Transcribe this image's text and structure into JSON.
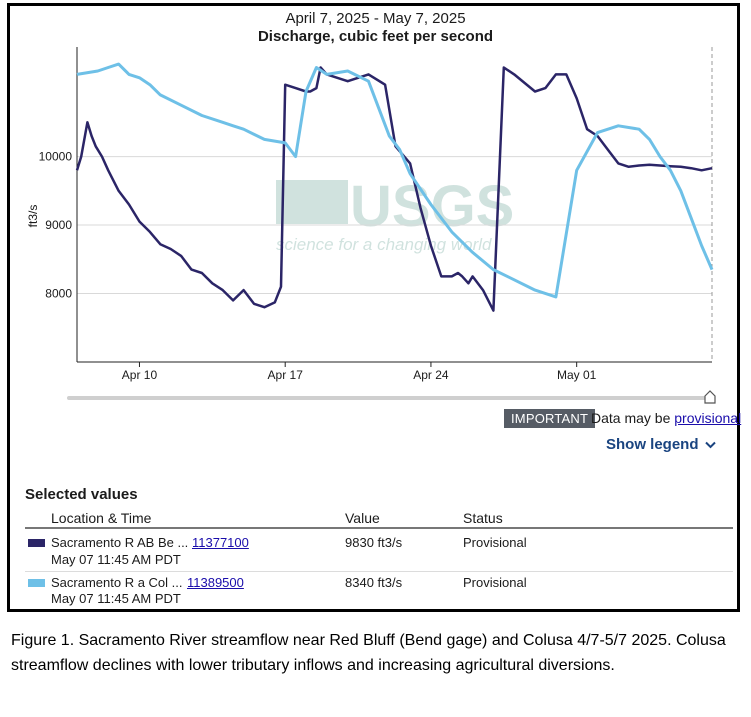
{
  "header": {
    "date_range": "April 7, 2025 - May 7, 2025",
    "title": "Discharge, cubic feet per second"
  },
  "chart_data": {
    "type": "line",
    "date_range": "April 7, 2025 - May 7, 2025",
    "title": "Discharge, cubic feet per second",
    "ylabel": "ft3/s",
    "xlabel": "",
    "ylim": [
      7000,
      11600
    ],
    "xlim": [
      0,
      30.5
    ],
    "y_ticks": [
      8000,
      9000,
      10000
    ],
    "y_tick_labels": [
      "8000",
      "9000",
      "10000"
    ],
    "x_ticks": [
      3,
      10,
      17,
      24
    ],
    "x_tick_labels": [
      "Apr 10",
      "Apr 17",
      "Apr 24",
      "May 01"
    ],
    "x_unit": "days after April 7, 2025 00:00",
    "grid": "horizontal",
    "watermark": {
      "logo": "USGS",
      "tagline": "science for a changing world"
    },
    "series": [
      {
        "name": "Sacramento R AB Be ...",
        "color": "#2b2567",
        "x": [
          0,
          0.2,
          0.5,
          0.7,
          0.9,
          1.2,
          1.5,
          2,
          2.5,
          3,
          3.5,
          4,
          4.5,
          5,
          5.5,
          6,
          6.5,
          7,
          7.5,
          8,
          8.5,
          9,
          9.5,
          9.8,
          10,
          10.5,
          11,
          11.2,
          11.5,
          11.7,
          12,
          13,
          14,
          14.8,
          15.3,
          16,
          16.5,
          17,
          17.5,
          18,
          18.3,
          18.5,
          18.8,
          19,
          19.5,
          20,
          20.5,
          21,
          22,
          22.5,
          23,
          23.5,
          24,
          24.5,
          25,
          25.5,
          26,
          26.5,
          27,
          27.5,
          28,
          28.5,
          29,
          29.5,
          30,
          30.5
        ],
        "y": [
          9800,
          10000,
          10500,
          10300,
          10150,
          10000,
          9800,
          9500,
          9300,
          9050,
          8900,
          8720,
          8650,
          8550,
          8350,
          8300,
          8150,
          8050,
          7900,
          8050,
          7850,
          7800,
          7870,
          8100,
          11050,
          11000,
          10950,
          10950,
          11000,
          11300,
          11200,
          11100,
          11200,
          11050,
          10150,
          9900,
          9250,
          8700,
          8250,
          8250,
          8300,
          8250,
          8150,
          8250,
          8050,
          7750,
          11300,
          11200,
          10950,
          11000,
          11200,
          11200,
          10850,
          10400,
          10300,
          10100,
          9900,
          9850,
          9870,
          9880,
          9870,
          9860,
          9850,
          9830,
          9800,
          9830
        ]
      },
      {
        "name": "Sacramento R a Col ...",
        "color": "#6ec0e7",
        "x": [
          0,
          1,
          1.5,
          2,
          2.5,
          3,
          3.5,
          4,
          5,
          6,
          7,
          7.5,
          8,
          9,
          10,
          10.5,
          11,
          11.5,
          12,
          13,
          14,
          15,
          15.5,
          16,
          17,
          18,
          19,
          20,
          21,
          22,
          23,
          24,
          25,
          26,
          27,
          27.5,
          28,
          28.5,
          29,
          29.5,
          30,
          30.5
        ],
        "y": [
          11200,
          11250,
          11300,
          11350,
          11200,
          11150,
          11050,
          10900,
          10750,
          10600,
          10500,
          10450,
          10400,
          10250,
          10200,
          10000,
          10950,
          11300,
          11200,
          11250,
          11100,
          10300,
          10100,
          9750,
          9300,
          8900,
          8600,
          8350,
          8200,
          8050,
          7950,
          9800,
          10350,
          10450,
          10400,
          10250,
          10000,
          9800,
          9500,
          9100,
          8700,
          8350
        ]
      }
    ]
  },
  "controls": {
    "important_label": "IMPORTANT",
    "provisional_prefix": "Data may be",
    "provisional_link": "provisional",
    "show_legend_label": "Show legend",
    "chevron_icon": "chevron-down-icon",
    "slider_handle_icon": "range-handle-icon"
  },
  "selected_values": {
    "heading": "Selected values",
    "columns": [
      "Location & Time",
      "Value",
      "Status"
    ],
    "rows": [
      {
        "swatch_color": "#2b2567",
        "location": "Sacramento R AB Be ...",
        "site_id": "11377100",
        "time": "May 07 11:45 AM PDT",
        "value": "9830 ft3/s",
        "status": "Provisional"
      },
      {
        "swatch_color": "#6ec0e7",
        "location": "Sacramento R a Col ...",
        "site_id": "11389500",
        "time": "May 07 11:45 AM PDT",
        "value": "8340 ft3/s",
        "status": "Provisional"
      }
    ]
  },
  "caption": {
    "text": "Figure 1. Sacramento River streamflow near Red Bluff (Bend gage) and Colusa 4/7-5/7 2025.  Colusa streamflow declines with lower tributary inflows and increasing agricultural diversions."
  }
}
